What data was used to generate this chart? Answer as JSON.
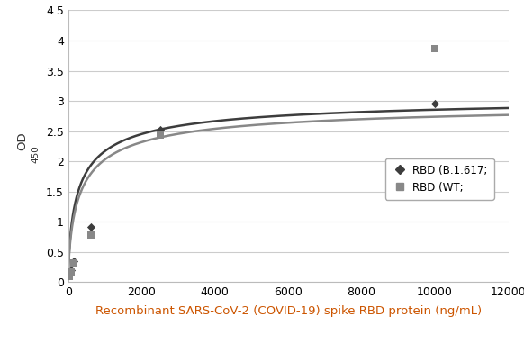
{
  "title": "",
  "xlabel": "Recombinant SARS-CoV-2 (COVID-19) spike RBD protein (ng/mL)",
  "ylabel_main": "OD",
  "ylabel_sub": "450",
  "xlim": [
    0,
    12000
  ],
  "ylim": [
    0,
    4.5
  ],
  "xticks": [
    0,
    2000,
    4000,
    6000,
    8000,
    10000,
    12000
  ],
  "yticks": [
    0,
    0.5,
    1.0,
    1.5,
    2.0,
    2.5,
    3.0,
    3.5,
    4.0,
    4.5
  ],
  "rbd_b1617_x": [
    39.0625,
    78.125,
    156.25,
    625,
    2500,
    10000
  ],
  "rbd_b1617_y": [
    0.148,
    0.198,
    0.345,
    0.92,
    2.52,
    2.95
  ],
  "rbd_wt_x": [
    39.0625,
    78.125,
    156.25,
    625,
    2500,
    10000
  ],
  "rbd_wt_y": [
    0.095,
    0.165,
    0.32,
    0.78,
    2.44,
    3.87
  ],
  "color_b1617": "#3d3d3d",
  "color_wt": "#888888",
  "legend_b1617": "RBD (B.1.617;",
  "legend_wt": "RBD (WT;",
  "xlabel_color": "#cc5500",
  "background_color": "#ffffff",
  "grid_color": "#cccccc"
}
